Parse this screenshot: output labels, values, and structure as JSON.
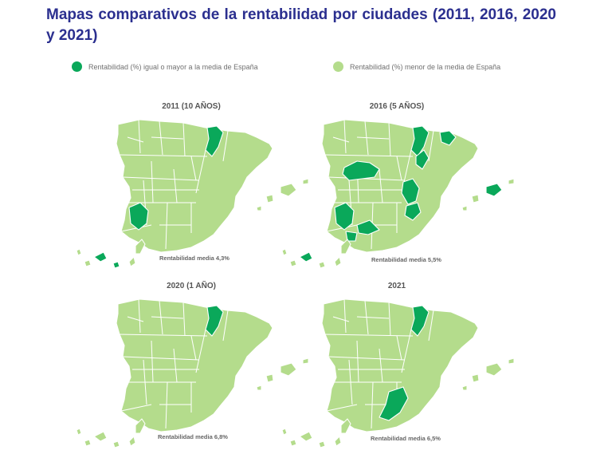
{
  "title": "Mapas comparativos de la rentabilidad por ciudades (2011, 2016, 2020 y 2021)",
  "colors": {
    "high": "#0aa85a",
    "low": "#b4dc8c",
    "border": "#ffffff"
  },
  "legend": {
    "high": "Rentabilidad (%) igual o mayor a la media de España",
    "low": "Rentabilidad (%) menor de la media de España"
  },
  "maps": [
    {
      "title": "2011 (10 AÑOS)",
      "caption": "Rentabilidad media  4,3%",
      "highlights": [
        "catalonia-west",
        "cordoba",
        "canary-a",
        "canary-b"
      ]
    },
    {
      "title": "2016 (5 AÑOS)",
      "caption": "Rentabilidad media  5,5%",
      "highlights": [
        "catalonia-west",
        "catalonia-east",
        "tarragona",
        "madrid-area",
        "valencia",
        "alicante",
        "cordoba",
        "granada",
        "malaga",
        "balearic",
        "canary-a"
      ]
    },
    {
      "title": "2020 (1 AÑO)",
      "caption": "Rentabilidad media  6,8%",
      "highlights": [
        "catalonia-west"
      ]
    },
    {
      "title": "2021",
      "caption": "Rentabilidad media  6,5%",
      "highlights": [
        "catalonia-west",
        "murcia"
      ]
    }
  ]
}
